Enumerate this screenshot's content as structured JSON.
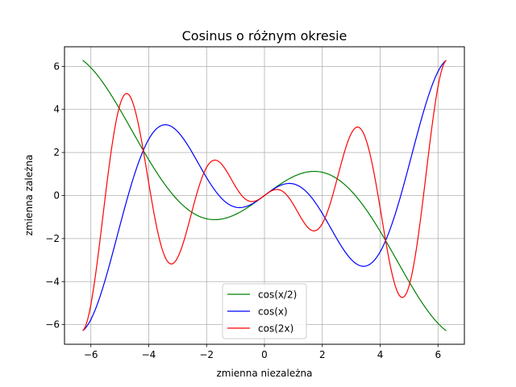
{
  "chart_data": {
    "type": "line",
    "title": "Cosinus o różnym okresie",
    "xlabel": "zmienna niezależna",
    "ylabel": "zmienna zależna",
    "xlim": [
      -6.912,
      6.912
    ],
    "ylim": [
      -6.912,
      6.912
    ],
    "xticks": [
      -6,
      -4,
      -2,
      0,
      2,
      4,
      6
    ],
    "yticks": [
      -6,
      -4,
      -2,
      0,
      2,
      4,
      6
    ],
    "xtick_labels": [
      "−6",
      "−4",
      "−2",
      "0",
      "2",
      "4",
      "6"
    ],
    "ytick_labels": [
      "−6",
      "−4",
      "−2",
      "0",
      "2",
      "4",
      "6"
    ],
    "grid": true,
    "legend_position": "lower-center",
    "function": "y = x * cos(k * x)",
    "x_range": [
      -6.2832,
      6.2832
    ],
    "series": [
      {
        "name": "cos(x/2)",
        "k": 0.5,
        "color": "#008000"
      },
      {
        "name": "cos(x)",
        "k": 1,
        "color": "#0000ff"
      },
      {
        "name": "cos(2x)",
        "k": 2,
        "color": "#ff0000"
      }
    ]
  }
}
